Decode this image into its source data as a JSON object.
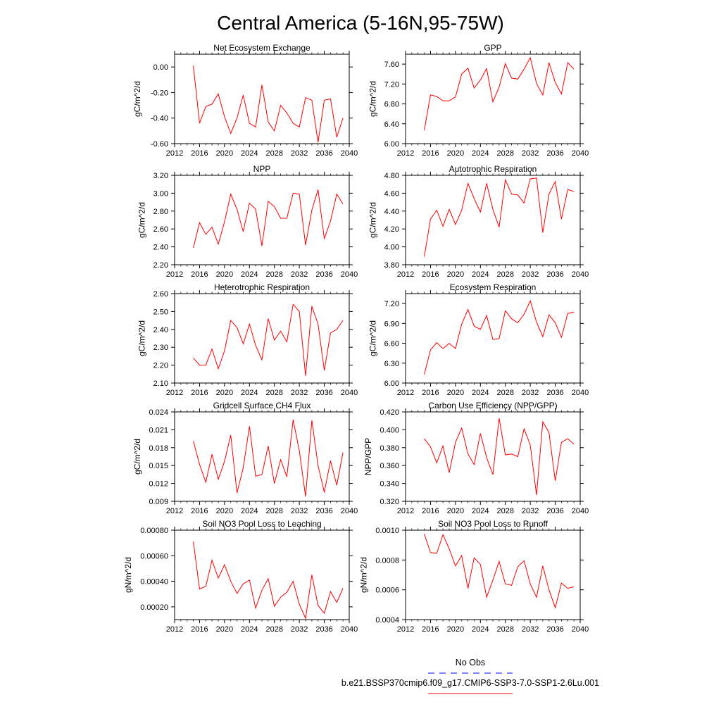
{
  "figure_title": "Central America (5-16N,95-75W)",
  "legend": {
    "entries": [
      {
        "label": "No Obs",
        "color": "#0000ff",
        "dashed": true
      },
      {
        "label": "b.e21.BSSP370cmip6.f09_g17.CMIP6-SSP3-7.0-SSP1-2.6Lu.001",
        "color": "#ff0000",
        "dashed": false
      }
    ]
  },
  "chart_data": [
    {
      "type": "line",
      "title": "Net Ecosystem Exchange",
      "ylabel": "gC/m^2/d",
      "xlim": [
        2012,
        2040
      ],
      "ylim": [
        -0.6,
        0.1
      ],
      "xticks": [
        2012,
        2016,
        2020,
        2024,
        2028,
        2032,
        2036,
        2040
      ],
      "xtick_labels": [
        "2012",
        "2016",
        "2020",
        "2024",
        "2028",
        "2032",
        "2036",
        "2040"
      ],
      "yticks": [
        -0.6,
        -0.4,
        -0.2,
        0.0
      ],
      "ytick_labels": [
        "-0.60",
        "-0.40",
        "-0.20",
        "0.00"
      ],
      "color": "#ff0000",
      "x": [
        2015,
        2016,
        2017,
        2018,
        2019,
        2020,
        2021,
        2022,
        2023,
        2024,
        2025,
        2026,
        2027,
        2028,
        2029,
        2030,
        2031,
        2032,
        2033,
        2034,
        2035,
        2036,
        2037,
        2038,
        2039
      ],
      "y": [
        0.01,
        -0.44,
        -0.31,
        -0.29,
        -0.21,
        -0.39,
        -0.52,
        -0.4,
        -0.22,
        -0.44,
        -0.47,
        -0.14,
        -0.43,
        -0.5,
        -0.3,
        -0.36,
        -0.44,
        -0.47,
        -0.24,
        -0.26,
        -0.59,
        -0.26,
        -0.25,
        -0.55,
        -0.4
      ]
    },
    {
      "type": "line",
      "title": "GPP",
      "ylabel": "gC/m^2/d",
      "xlim": [
        2012,
        2040
      ],
      "ylim": [
        6.0,
        7.8
      ],
      "xticks": [
        2012,
        2016,
        2020,
        2024,
        2028,
        2032,
        2036,
        2040
      ],
      "xtick_labels": [
        "2012",
        "2016",
        "2020",
        "2024",
        "2028",
        "2032",
        "2036",
        "2040"
      ],
      "yticks": [
        6.0,
        6.4,
        6.8,
        7.2,
        7.6
      ],
      "ytick_labels": [
        "6.00",
        "6.40",
        "6.80",
        "7.20",
        "7.60"
      ],
      "color": "#ff0000",
      "x": [
        2015,
        2016,
        2017,
        2018,
        2019,
        2020,
        2021,
        2022,
        2023,
        2024,
        2025,
        2026,
        2027,
        2028,
        2029,
        2030,
        2031,
        2032,
        2033,
        2034,
        2035,
        2036,
        2037,
        2038,
        2039
      ],
      "y": [
        6.27,
        6.98,
        6.95,
        6.86,
        6.86,
        6.94,
        7.4,
        7.52,
        7.12,
        7.28,
        7.51,
        6.84,
        7.14,
        7.61,
        7.32,
        7.3,
        7.5,
        7.73,
        7.21,
        6.98,
        7.63,
        7.23,
        7.0,
        7.63,
        7.5
      ]
    },
    {
      "type": "line",
      "title": "NPP",
      "ylabel": "gC/m^2/d",
      "xlim": [
        2012,
        2040
      ],
      "ylim": [
        2.2,
        3.2
      ],
      "xticks": [
        2012,
        2016,
        2020,
        2024,
        2028,
        2032,
        2036,
        2040
      ],
      "xtick_labels": [
        "2012",
        "2016",
        "2020",
        "2024",
        "2028",
        "2032",
        "2036",
        "2040"
      ],
      "yticks": [
        2.2,
        2.4,
        2.6,
        2.8,
        3.0,
        3.2
      ],
      "ytick_labels": [
        "2.20",
        "2.40",
        "2.60",
        "2.80",
        "3.00",
        "3.20"
      ],
      "color": "#ff0000",
      "x": [
        2015,
        2016,
        2017,
        2018,
        2019,
        2020,
        2021,
        2022,
        2023,
        2024,
        2025,
        2026,
        2027,
        2028,
        2029,
        2030,
        2031,
        2032,
        2033,
        2034,
        2035,
        2036,
        2037,
        2038,
        2039
      ],
      "y": [
        2.39,
        2.67,
        2.54,
        2.62,
        2.43,
        2.68,
        2.99,
        2.82,
        2.57,
        2.89,
        2.82,
        2.41,
        2.91,
        2.85,
        2.72,
        2.72,
        3.0,
        2.99,
        2.42,
        2.81,
        3.04,
        2.49,
        2.69,
        2.99,
        2.88
      ]
    },
    {
      "type": "line",
      "title": "Autotrophic Respiration",
      "ylabel": "gC/m^2/d",
      "xlim": [
        2012,
        2040
      ],
      "ylim": [
        3.8,
        4.8
      ],
      "xticks": [
        2012,
        2016,
        2020,
        2024,
        2028,
        2032,
        2036,
        2040
      ],
      "xtick_labels": [
        "2012",
        "2016",
        "2020",
        "2024",
        "2028",
        "2032",
        "2036",
        "2040"
      ],
      "yticks": [
        3.8,
        4.0,
        4.2,
        4.4,
        4.6,
        4.8
      ],
      "ytick_labels": [
        "3.80",
        "4.00",
        "4.20",
        "4.40",
        "4.60",
        "4.80"
      ],
      "color": "#ff0000",
      "x": [
        2015,
        2016,
        2017,
        2018,
        2019,
        2020,
        2021,
        2022,
        2023,
        2024,
        2025,
        2026,
        2027,
        2028,
        2029,
        2030,
        2031,
        2032,
        2033,
        2034,
        2035,
        2036,
        2037,
        2038,
        2039
      ],
      "y": [
        3.89,
        4.31,
        4.41,
        4.23,
        4.42,
        4.25,
        4.41,
        4.71,
        4.54,
        4.39,
        4.71,
        4.42,
        4.22,
        4.75,
        4.59,
        4.58,
        4.49,
        4.76,
        4.77,
        4.16,
        4.59,
        4.73,
        4.31,
        4.64,
        4.62
      ]
    },
    {
      "type": "line",
      "title": "Heterotrophic Respiration",
      "ylabel": "gC/m^2/d",
      "xlim": [
        2012,
        2040
      ],
      "ylim": [
        2.1,
        2.6
      ],
      "xticks": [
        2012,
        2016,
        2020,
        2024,
        2028,
        2032,
        2036,
        2040
      ],
      "xtick_labels": [
        "2012",
        "2016",
        "2020",
        "2024",
        "2028",
        "2032",
        "2036",
        "2040"
      ],
      "yticks": [
        2.1,
        2.2,
        2.3,
        2.4,
        2.5,
        2.6
      ],
      "ytick_labels": [
        "2.10",
        "2.20",
        "2.30",
        "2.40",
        "2.50",
        "2.60"
      ],
      "color": "#ff0000",
      "x": [
        2015,
        2016,
        2017,
        2018,
        2019,
        2020,
        2021,
        2022,
        2023,
        2024,
        2025,
        2026,
        2027,
        2028,
        2029,
        2030,
        2031,
        2032,
        2033,
        2034,
        2035,
        2036,
        2037,
        2038,
        2039
      ],
      "y": [
        2.24,
        2.2,
        2.2,
        2.29,
        2.18,
        2.28,
        2.45,
        2.41,
        2.32,
        2.43,
        2.31,
        2.23,
        2.46,
        2.34,
        2.39,
        2.33,
        2.54,
        2.5,
        2.14,
        2.53,
        2.43,
        2.17,
        2.38,
        2.4,
        2.45
      ]
    },
    {
      "type": "line",
      "title": "Ecosystem Respiration",
      "ylabel": "gC/m^2/d",
      "xlim": [
        2012,
        2040
      ],
      "ylim": [
        6.0,
        7.35
      ],
      "xticks": [
        2012,
        2016,
        2020,
        2024,
        2028,
        2032,
        2036,
        2040
      ],
      "xtick_labels": [
        "2012",
        "2016",
        "2020",
        "2024",
        "2028",
        "2032",
        "2036",
        "2040"
      ],
      "yticks": [
        6.0,
        6.3,
        6.6,
        6.9,
        7.2
      ],
      "ytick_labels": [
        "6.00",
        "6.30",
        "6.60",
        "6.90",
        "7.20"
      ],
      "color": "#ff0000",
      "x": [
        2015,
        2016,
        2017,
        2018,
        2019,
        2020,
        2021,
        2022,
        2023,
        2024,
        2025,
        2026,
        2027,
        2028,
        2029,
        2030,
        2031,
        2032,
        2033,
        2034,
        2035,
        2036,
        2037,
        2038,
        2039
      ],
      "y": [
        6.13,
        6.5,
        6.61,
        6.52,
        6.6,
        6.52,
        6.89,
        7.11,
        6.86,
        6.81,
        7.02,
        6.66,
        6.67,
        7.09,
        6.97,
        6.91,
        7.04,
        7.24,
        6.92,
        6.7,
        7.03,
        6.91,
        6.69,
        7.05,
        7.07
      ]
    },
    {
      "type": "line",
      "title": "Gridcell Surface CH4 Flux",
      "ylabel": "gC/m^2/d",
      "xlim": [
        2012,
        2040
      ],
      "ylim": [
        0.009,
        0.024
      ],
      "xticks": [
        2012,
        2016,
        2020,
        2024,
        2028,
        2032,
        2036,
        2040
      ],
      "xtick_labels": [
        "2012",
        "2016",
        "2020",
        "2024",
        "2028",
        "2032",
        "2036",
        "2040"
      ],
      "yticks": [
        0.009,
        0.012,
        0.015,
        0.018,
        0.021,
        0.024
      ],
      "ytick_labels": [
        "0.009",
        "0.012",
        "0.015",
        "0.018",
        "0.021",
        "0.024"
      ],
      "color": "#ff0000",
      "x": [
        2015,
        2016,
        2017,
        2018,
        2019,
        2020,
        2021,
        2022,
        2023,
        2024,
        2025,
        2026,
        2027,
        2028,
        2029,
        2030,
        2031,
        2032,
        2033,
        2034,
        2035,
        2036,
        2037,
        2038,
        2039
      ],
      "y": [
        0.0191,
        0.0152,
        0.0122,
        0.0169,
        0.0127,
        0.0157,
        0.0201,
        0.0104,
        0.0146,
        0.0216,
        0.0132,
        0.0135,
        0.0183,
        0.012,
        0.016,
        0.0131,
        0.0227,
        0.0175,
        0.0098,
        0.0226,
        0.015,
        0.0105,
        0.0158,
        0.0117,
        0.0172
      ]
    },
    {
      "type": "line",
      "title": "Carbon Use Efficiency (NPP/GPP)",
      "ylabel": "NPP/GPP",
      "xlim": [
        2012,
        2040
      ],
      "ylim": [
        0.32,
        0.42
      ],
      "xticks": [
        2012,
        2016,
        2020,
        2024,
        2028,
        2032,
        2036,
        2040
      ],
      "xtick_labels": [
        "2012",
        "2016",
        "2020",
        "2024",
        "2028",
        "2032",
        "2036",
        "2040"
      ],
      "yticks": [
        0.32,
        0.34,
        0.36,
        0.38,
        0.4,
        0.42
      ],
      "ytick_labels": [
        "0.320",
        "0.340",
        "0.360",
        "0.380",
        "0.400",
        "0.420"
      ],
      "color": "#ff0000",
      "x": [
        2015,
        2016,
        2017,
        2018,
        2019,
        2020,
        2021,
        2022,
        2023,
        2024,
        2025,
        2026,
        2027,
        2028,
        2029,
        2030,
        2031,
        2032,
        2033,
        2034,
        2035,
        2036,
        2037,
        2038,
        2039
      ],
      "y": [
        0.39,
        0.381,
        0.363,
        0.382,
        0.352,
        0.386,
        0.402,
        0.373,
        0.361,
        0.396,
        0.369,
        0.35,
        0.413,
        0.372,
        0.373,
        0.37,
        0.401,
        0.383,
        0.327,
        0.409,
        0.397,
        0.343,
        0.386,
        0.39,
        0.384
      ]
    },
    {
      "type": "line",
      "title": "Soil NO3 Pool Loss to Leaching",
      "ylabel": "gN/m^2/d",
      "xlim": [
        2012,
        2040
      ],
      "ylim": [
        0.0001,
        0.0008
      ],
      "xticks": [
        2012,
        2016,
        2020,
        2024,
        2028,
        2032,
        2036,
        2040
      ],
      "xtick_labels": [
        "2012",
        "2016",
        "2020",
        "2024",
        "2028",
        "2032",
        "2036",
        "2040"
      ],
      "yticks": [
        0.0002,
        0.0004,
        0.0006,
        0.0008
      ],
      "ytick_labels": [
        "0.00020",
        "0.00040",
        "0.00060",
        "0.00080"
      ],
      "color": "#ff0000",
      "x": [
        2015,
        2016,
        2017,
        2018,
        2019,
        2020,
        2021,
        2022,
        2023,
        2024,
        2025,
        2026,
        2027,
        2028,
        2029,
        2030,
        2031,
        2032,
        2033,
        2034,
        2035,
        2036,
        2037,
        2038,
        2039
      ],
      "y": [
        0.00071,
        0.00034,
        0.00036,
        0.000565,
        0.000425,
        0.00053,
        0.0004,
        0.000305,
        0.00038,
        0.00041,
        0.00019,
        0.00033,
        0.00042,
        0.000205,
        0.000275,
        0.000315,
        0.0004,
        0.00022,
        0.00011,
        0.00045,
        0.00021,
        0.00015,
        0.00032,
        0.000235,
        0.000345
      ]
    },
    {
      "type": "line",
      "title": "Soil NO3 Pool Loss to Runoff",
      "ylabel": "gN/m^2/d",
      "xlim": [
        2012,
        2040
      ],
      "ylim": [
        0.0004,
        0.001
      ],
      "xticks": [
        2012,
        2016,
        2020,
        2024,
        2028,
        2032,
        2036,
        2040
      ],
      "xtick_labels": [
        "2012",
        "2016",
        "2020",
        "2024",
        "2028",
        "2032",
        "2036",
        "2040"
      ],
      "yticks": [
        0.0004,
        0.0006,
        0.0008,
        0.001
      ],
      "ytick_labels": [
        "0.0004",
        "0.0006",
        "0.0008",
        "0.0010"
      ],
      "color": "#ff0000",
      "x": [
        2015,
        2016,
        2017,
        2018,
        2019,
        2020,
        2021,
        2022,
        2023,
        2024,
        2025,
        2026,
        2027,
        2028,
        2029,
        2030,
        2031,
        2032,
        2033,
        2034,
        2035,
        2036,
        2037,
        2038,
        2039
      ],
      "y": [
        0.000975,
        0.00085,
        0.000845,
        0.00097,
        0.000875,
        0.00076,
        0.00083,
        0.00061,
        0.000815,
        0.00077,
        0.00055,
        0.000665,
        0.00079,
        0.00064,
        0.00063,
        0.000755,
        0.000795,
        0.00064,
        0.00055,
        0.00076,
        0.0006,
        0.00048,
        0.000645,
        0.00061,
        0.00062
      ]
    }
  ]
}
